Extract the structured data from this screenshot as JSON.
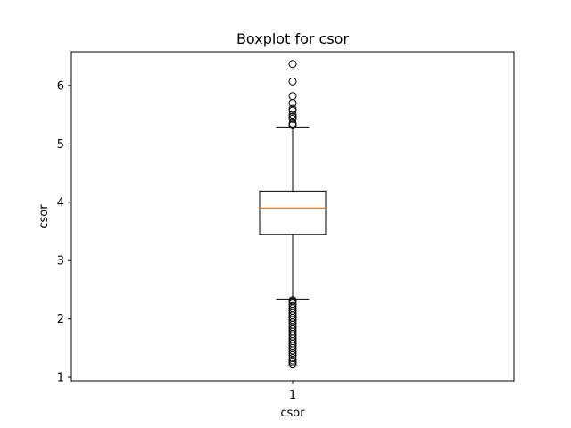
{
  "chart_data": {
    "type": "boxplot",
    "title": "Boxplot for csor",
    "xlabel": "csor",
    "ylabel": "csor",
    "categories": [
      "1"
    ],
    "yticks": [
      1,
      2,
      3,
      4,
      5,
      6
    ],
    "ylim": [
      0.94,
      6.58
    ],
    "grid": false,
    "colors": {
      "median": "#ff7f0e",
      "box": "#000000"
    },
    "boxes": [
      {
        "category": "1",
        "whisker_low": 2.34,
        "q1": 3.45,
        "median": 3.9,
        "q3": 4.19,
        "whisker_high": 5.29,
        "outliers_high": [
          5.32,
          5.35,
          5.43,
          5.46,
          5.5,
          5.57,
          5.6,
          5.7,
          5.82,
          6.07,
          6.37
        ],
        "outliers_low": [
          1.22,
          1.26,
          1.29,
          1.33,
          1.38,
          1.42,
          1.46,
          1.5,
          1.54,
          1.58,
          1.62,
          1.66,
          1.7,
          1.74,
          1.78,
          1.82,
          1.86,
          1.9,
          1.94,
          1.98,
          2.02,
          2.06,
          2.1,
          2.14,
          2.18,
          2.22,
          2.26,
          2.3,
          2.32
        ]
      }
    ]
  }
}
